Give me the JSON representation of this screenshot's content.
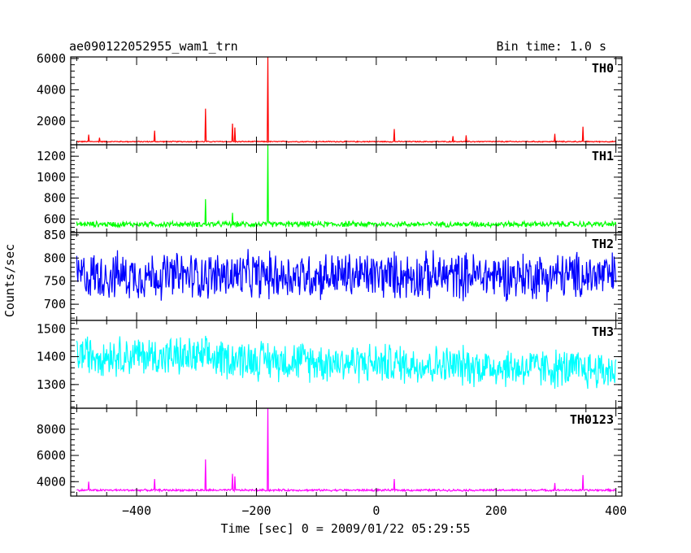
{
  "chart_data": {
    "type": "line",
    "title": "ae090122052955_wam1_trn",
    "bin_time_label": "Bin time: 1.0 s",
    "ylabel": "Counts/sec",
    "xlabel": "Time [sec] 0 = 2009/01/22 05:29:55",
    "xlim": [
      -510,
      410
    ],
    "x_ticks": [
      -400,
      -200,
      0,
      200,
      400
    ],
    "x_tick_labels": [
      "−400",
      "−200",
      "0",
      "200",
      "400"
    ],
    "grid": false,
    "series_x_range": [
      -500,
      400
    ],
    "panels": [
      {
        "name": "TH0",
        "color": "#ff0000",
        "ylim": [
          500,
          6100
        ],
        "y_ticks": [
          2000,
          4000,
          6000
        ],
        "y_tick_labels": [
          "2000",
          "4000",
          "6000"
        ],
        "baseline": 700,
        "noise": 60,
        "spikes": [
          [
            -480,
            1150
          ],
          [
            -462,
            950
          ],
          [
            -370,
            1400
          ],
          [
            -285,
            2800
          ],
          [
            -240,
            1850
          ],
          [
            -236,
            1600
          ],
          [
            -181,
            6100
          ],
          [
            30,
            1500
          ],
          [
            128,
            1050
          ],
          [
            150,
            1100
          ],
          [
            298,
            1200
          ],
          [
            345,
            1650
          ]
        ]
      },
      {
        "name": "TH1",
        "color": "#00ff00",
        "ylim": [
          470,
          1310
        ],
        "y_ticks": [
          600,
          800,
          1000,
          1200
        ],
        "y_tick_labels": [
          "600",
          "800",
          "1000",
          "1200"
        ],
        "baseline": 550,
        "noise": 45,
        "spikes": [
          [
            -285,
            790
          ],
          [
            -240,
            660
          ],
          [
            -181,
            1310
          ]
        ]
      },
      {
        "name": "TH2",
        "color": "#0000ff",
        "ylim": [
          665,
          855
        ],
        "y_ticks": [
          700,
          750,
          800,
          850
        ],
        "y_tick_labels": [
          "700",
          "750",
          "800",
          "850"
        ],
        "baseline": 762,
        "noise": 85,
        "spikes": []
      },
      {
        "name": "TH3",
        "color": "#00ffff",
        "ylim": [
          1215,
          1530
        ],
        "y_ticks": [
          1300,
          1400,
          1500
        ],
        "y_tick_labels": [
          "1300",
          "1400",
          "1500"
        ],
        "baseline_start": 1410,
        "baseline_end": 1350,
        "noise": 120,
        "spikes": []
      },
      {
        "name": "TH0123",
        "color": "#ff00ff",
        "ylim": [
          2900,
          9600
        ],
        "y_ticks": [
          4000,
          6000,
          8000
        ],
        "y_tick_labels": [
          "4000",
          "6000",
          "8000"
        ],
        "baseline": 3350,
        "noise": 130,
        "spikes": [
          [
            -480,
            4000
          ],
          [
            -370,
            4200
          ],
          [
            -285,
            5700
          ],
          [
            -240,
            4600
          ],
          [
            -236,
            4400
          ],
          [
            -181,
            9600
          ],
          [
            30,
            4200
          ],
          [
            298,
            3900
          ],
          [
            345,
            4500
          ]
        ]
      }
    ]
  }
}
